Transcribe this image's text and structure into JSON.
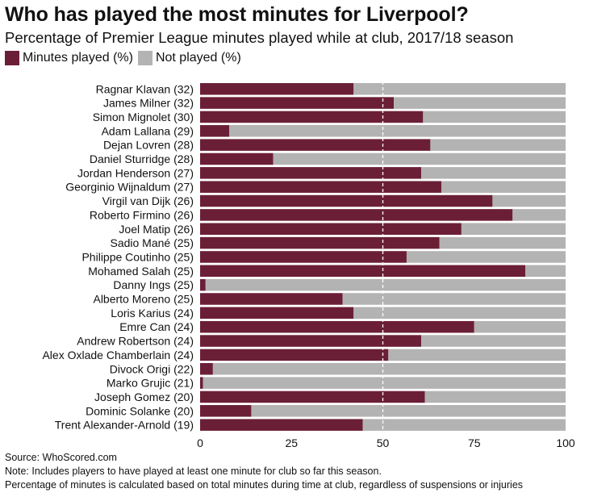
{
  "chart_data": {
    "type": "bar",
    "orientation": "horizontal",
    "stacked": true,
    "title": "Who has played the most minutes for Liverpool?",
    "subtitle": "Percentage of Premier League minutes played while at club, 2017/18 season",
    "categories": [
      "Ragnar Klavan (32)",
      "James Milner (32)",
      "Simon Mignolet (30)",
      "Adam Lallana (29)",
      "Dejan Lovren (28)",
      "Daniel Sturridge (28)",
      "Jordan Henderson (27)",
      "Georginio Wijnaldum (27)",
      "Virgil van Dijk (26)",
      "Roberto Firmino (26)",
      "Joel Matip (26)",
      "Sadio Mané (25)",
      "Philippe Coutinho (25)",
      "Mohamed Salah (25)",
      "Danny Ings (25)",
      "Alberto Moreno (25)",
      "Loris Karius (24)",
      "Emre Can (24)",
      "Andrew Robertson (24)",
      "Alex Oxlade Chamberlain (24)",
      "Divock Origi (22)",
      "Marko Grujic (21)",
      "Joseph Gomez (20)",
      "Dominic Solanke (20)",
      "Trent Alexander-Arnold (19)"
    ],
    "series": [
      {
        "name": "Minutes played (%)",
        "color": "#6b1f36",
        "values": [
          42,
          53,
          61,
          8,
          63,
          20,
          60.5,
          66,
          80,
          85.5,
          71.5,
          65.5,
          56.5,
          89,
          1.5,
          39,
          42,
          75,
          60.5,
          51.5,
          3.5,
          0.8,
          61.5,
          14,
          44.5
        ]
      },
      {
        "name": "Not played (%)",
        "color": "#b3b3b3",
        "values": [
          58,
          47,
          39,
          92,
          37,
          80,
          39.5,
          34,
          20,
          14.5,
          28.5,
          34.5,
          43.5,
          11,
          98.5,
          61,
          58,
          25,
          39.5,
          48.5,
          96.5,
          99.2,
          38.5,
          86,
          55.5
        ]
      }
    ],
    "xlim": [
      0,
      100
    ],
    "xticks": [
      "0",
      "25",
      "50",
      "75",
      "100"
    ],
    "reference_line": 50,
    "legend_position": "top-left"
  },
  "legend": {
    "played_label": "Minutes played (%)",
    "not_played_label": "Not played (%)",
    "played_color": "#6b1f36",
    "not_played_color": "#b3b3b3"
  },
  "footer": {
    "source": "Source: WhoScored.com",
    "note1": "Note: Includes players to have played at least one minute for club so far this season.",
    "note2": "Percentage of minutes is calculated based on total minutes during time at club, regardless of suspensions or injuries"
  }
}
